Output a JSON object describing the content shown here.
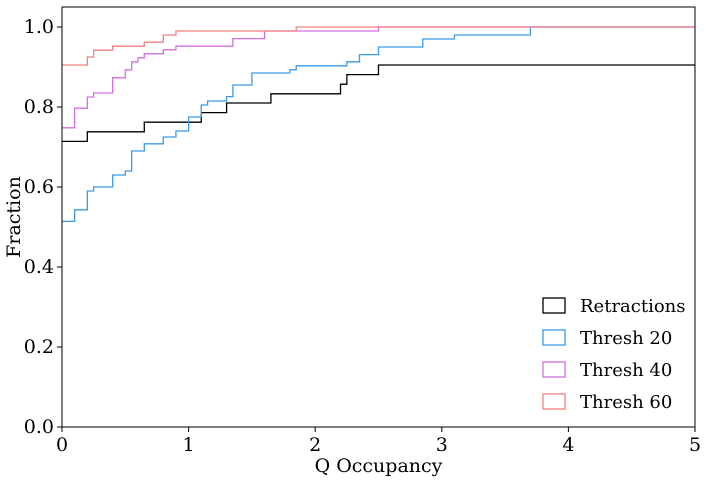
{
  "chart_data": {
    "type": "line",
    "subtype": "step-cdf",
    "title": "",
    "xlabel": "Q Occupancy",
    "ylabel": "Fraction",
    "xlim": [
      0,
      5
    ],
    "ylim": [
      0,
      1.05
    ],
    "xticks": [
      0,
      1,
      2,
      3,
      4,
      5
    ],
    "xtick_labels": [
      "0",
      "1",
      "2",
      "3",
      "4",
      "5"
    ],
    "yticks": [
      0.0,
      0.2,
      0.4,
      0.6,
      0.8,
      1.0
    ],
    "ytick_labels": [
      "0.0",
      "0.2",
      "0.4",
      "0.6",
      "0.8",
      "1.0"
    ],
    "grid": false,
    "legend_position": "lower-right",
    "series": [
      {
        "name": "Retractions",
        "color": "#000000",
        "x": [
          0,
          0.2,
          0.65,
          1.1,
          1.3,
          1.65,
          2.2,
          2.25,
          2.5,
          5
        ],
        "y": [
          0.714,
          0.738,
          0.762,
          0.786,
          0.81,
          0.833,
          0.857,
          0.881,
          0.905,
          0.905
        ]
      },
      {
        "name": "Thresh 20",
        "color": "#3a9ae6",
        "x": [
          0,
          0.1,
          0.2,
          0.25,
          0.4,
          0.5,
          0.55,
          0.65,
          0.8,
          0.9,
          1.0,
          1.1,
          1.15,
          1.3,
          1.35,
          1.5,
          1.8,
          1.85,
          2.25,
          2.35,
          2.5,
          2.85,
          3.1,
          3.7,
          5
        ],
        "y": [
          0.514,
          0.543,
          0.59,
          0.6,
          0.63,
          0.64,
          0.69,
          0.708,
          0.725,
          0.74,
          0.775,
          0.805,
          0.815,
          0.826,
          0.855,
          0.885,
          0.893,
          0.903,
          0.913,
          0.931,
          0.95,
          0.97,
          0.98,
          1.0,
          1.0
        ]
      },
      {
        "name": "Thresh 40",
        "color": "#d56fe0",
        "x": [
          0,
          0.1,
          0.2,
          0.25,
          0.4,
          0.5,
          0.55,
          0.6,
          0.65,
          0.8,
          0.9,
          1.35,
          1.6,
          2.5,
          5
        ],
        "y": [
          0.748,
          0.797,
          0.825,
          0.835,
          0.873,
          0.893,
          0.913,
          0.923,
          0.933,
          0.943,
          0.952,
          0.971,
          0.99,
          1.0,
          1.0
        ]
      },
      {
        "name": "Thresh 60",
        "color": "#f08080",
        "x": [
          0,
          0.2,
          0.25,
          0.4,
          0.65,
          0.8,
          0.9,
          1.85,
          5
        ],
        "y": [
          0.905,
          0.925,
          0.942,
          0.952,
          0.962,
          0.98,
          0.99,
          1.0,
          1.0
        ]
      }
    ]
  }
}
